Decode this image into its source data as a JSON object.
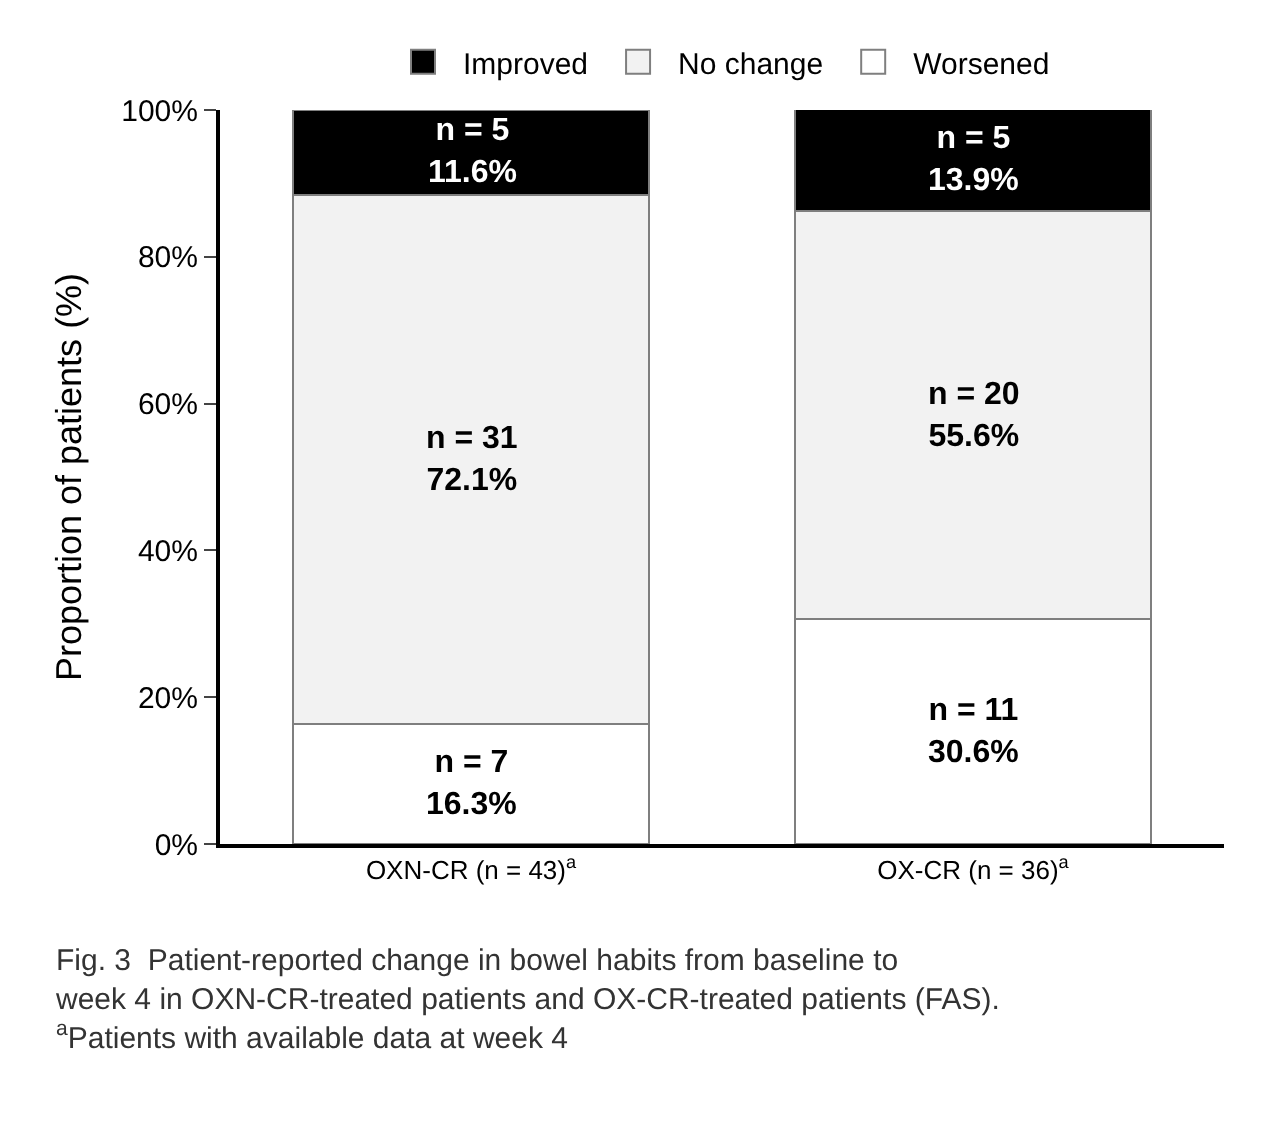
{
  "chart_data": {
    "type": "bar",
    "stacked": true,
    "categories": [
      "OXN-CR (n = 43)$^{a}$",
      "OX-CR (n = 36)$^{a}$"
    ],
    "ylabel": "Proportion of patients (%)",
    "ylim": [
      0,
      100
    ],
    "yticks": [
      {
        "value": 0,
        "label": "0%"
      },
      {
        "value": 20,
        "label": "20%"
      },
      {
        "value": 40,
        "label": "40%"
      },
      {
        "value": 60,
        "label": "60%"
      },
      {
        "value": 80,
        "label": "80%"
      },
      {
        "value": 100,
        "label": "100%"
      }
    ],
    "grid": false,
    "legend": "top",
    "series": [
      {
        "name": "Worsened",
        "color": "#ffffff",
        "values": [
          16.3,
          30.6
        ],
        "value_labels": [
          "n = 7\n16.3%",
          "n = 11\n30.6%"
        ]
      },
      {
        "name": "No change",
        "color": "#f2f2f2",
        "values": [
          72.1,
          55.6
        ],
        "value_labels": [
          "n = 31\n72.1%",
          "n = 20\n55.6%"
        ]
      },
      {
        "name": "Improved",
        "color": "#000000",
        "values": [
          11.6,
          13.9
        ],
        "value_labels": [
          "n = 5\n11.6%",
          "n = 5\n13.9%"
        ]
      }
    ],
    "annotations": [
      "Fig. 3  Patient-reported change in bowel habits from baseline to\nweek 4 in OXN-CR-treated patients and OX-CR-treated patients (FAS).\n$^{a}$Patients with available data at week 4"
    ]
  }
}
